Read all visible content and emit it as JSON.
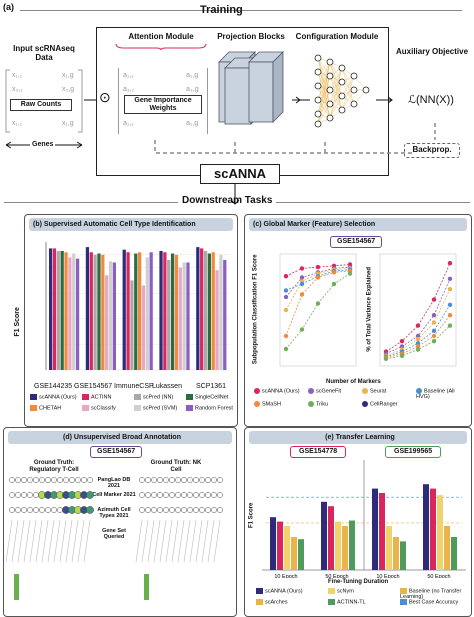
{
  "colors": {
    "scanna": "#2e2a7c",
    "actinn": "#d9275e",
    "scpred_nn": "#a9a9a9",
    "singlecellnet": "#2f6b3f",
    "chetah": "#f08a3e",
    "scclassify": "#e7a8c4",
    "scpred_svm": "#d0d0d0",
    "random_forest": "#8b5fbf",
    "scarches": "#e9b44c",
    "scnym": "#f0d36a",
    "actinn_tl": "#4f9b5c",
    "panel_header": "#c9d3df"
  },
  "panel_a": {
    "tag": "(a)",
    "title": "Training",
    "input_label": "Input scRNAseq Data",
    "raw_counts": "Raw Counts",
    "genes_label": "Genes",
    "x_entries": [
      "x₁,₁",
      "x₁,g",
      "x₃,₁",
      "x₃,g",
      "x₁,₁",
      "x₁,g"
    ],
    "dot_symbol": "⊙",
    "attention_title": "Attention Module",
    "attention_inner": "Gene Importance Weights",
    "a_entries": [
      "a₁,₁",
      "a₁,g",
      "a₃,₁",
      "a₃,g",
      "a₁,₁",
      "a₁,g"
    ],
    "projection_title": "Projection Blocks",
    "configuration_title": "Configuration Module",
    "auxiliary_title": "Auxiliary Objective",
    "formula": "ℒ(NN(X))",
    "backprop": "Backprop.",
    "model_name": "scANNA",
    "downstream": "Downstream Tasks"
  },
  "panel_b": {
    "tag": "(b)",
    "title": "Supervised Automatic Cell Type Identification",
    "ylabel": "F1 Score",
    "datasets": [
      "GSE144235",
      "GSE154567",
      "ImmuneCSP",
      "Lukassen",
      "SCP1361"
    ],
    "legend": [
      "scANNA (Ours)",
      "ACTINN",
      "scPred (NN)",
      "SingleCellNet",
      "CHETAH",
      "scClassify",
      "scPred (SVM)",
      "Random Forest"
    ]
  },
  "panel_c": {
    "tag": "(c)",
    "title": "Global Marker (Feature) Selection",
    "dataset": "GSE154567",
    "ylabel_left": "Subpopulation Classification F1 Score",
    "ylabel_right": "% of Total Variance Explained",
    "xlabel": "Number of Markers",
    "legend": [
      "scANNA (Ours)",
      "scGeneFit",
      "Seurat",
      "Baseline (All HVG)",
      "SMaSH",
      "Triku",
      "CellRanger"
    ]
  },
  "panel_d": {
    "tag": "(d)",
    "title": "Unsupervised Broad Annotation",
    "dataset": "GSE154567",
    "truth_left": "Ground Truth: Regulatory T-Cell",
    "truth_right": "Ground Truth: NK Cell",
    "gene_sets": [
      "PangLao DB 2021",
      "Cell Marker 2021",
      "Azimuth Cell Types 2021"
    ],
    "gene_set_label": "Gene Set Queried"
  },
  "panel_e": {
    "tag": "(e)",
    "title": "Transfer Learning",
    "dataset_left": "GSE154778",
    "dataset_right": "GSE199565",
    "ylabel": "F1 Score",
    "xticks": [
      "10 Epoch",
      "50 Epoch",
      "10 Epoch",
      "50 Epoch"
    ],
    "xlabel": "Fine-Tuning Duration",
    "legend": [
      "scANNA (Ours)",
      "scNym",
      "Baseline (no Transfer Learning)",
      "scArches",
      "ACTINN-TL",
      "Best Case Accuracy"
    ]
  }
}
